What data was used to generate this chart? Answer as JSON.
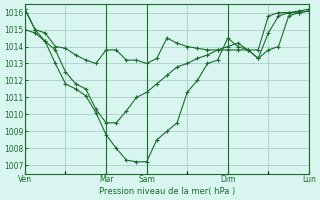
{
  "title": "",
  "xlabel": "Pression niveau de la mer( hPa )",
  "ylabel": "",
  "bg_color": "#d8f5f0",
  "line_color": "#1a6b2a",
  "grid_color": "#a0c8c0",
  "tick_color": "#1a6b2a",
  "ylim": [
    1006.5,
    1016.5
  ],
  "xtick_labels": [
    "Ven",
    "",
    "Mar",
    "Sam",
    "",
    "Dim",
    "",
    "Lun"
  ],
  "xtick_positions": [
    0,
    24,
    48,
    72,
    96,
    120,
    144,
    168
  ],
  "line1_x": [
    0,
    6,
    12,
    18,
    24,
    30,
    36,
    42,
    48,
    54,
    60,
    66,
    72,
    78,
    84,
    90,
    96,
    102,
    108,
    114,
    120,
    126,
    132,
    138,
    144,
    150,
    156,
    162,
    168
  ],
  "line1_y": [
    1016.2,
    1015.0,
    1014.8,
    1014.0,
    1013.9,
    1013.5,
    1013.2,
    1013.0,
    1013.8,
    1013.8,
    1013.2,
    1013.2,
    1013.0,
    1013.3,
    1014.5,
    1014.2,
    1014.0,
    1013.9,
    1013.8,
    1013.8,
    1013.8,
    1013.8,
    1013.8,
    1013.8,
    1015.8,
    1016.0,
    1016.0,
    1016.0,
    1016.1
  ],
  "line2_x": [
    0,
    6,
    12,
    18,
    24,
    30,
    36,
    42,
    48,
    54,
    60,
    66,
    72,
    78,
    84,
    90,
    96,
    102,
    108,
    114,
    120,
    126,
    132,
    138,
    144,
    150,
    156,
    162,
    168
  ],
  "line2_y": [
    1015.0,
    1014.8,
    1014.3,
    1013.8,
    1012.5,
    1011.8,
    1011.5,
    1010.3,
    1009.5,
    1009.5,
    1010.2,
    1011.0,
    1011.3,
    1011.8,
    1012.3,
    1012.8,
    1013.0,
    1013.3,
    1013.5,
    1013.8,
    1014.0,
    1014.2,
    1013.8,
    1013.3,
    1014.8,
    1015.8,
    1016.0,
    1016.1,
    1016.2
  ],
  "line3_x": [
    0,
    6,
    12,
    18,
    24,
    30,
    36,
    42,
    48,
    54,
    60,
    66,
    72,
    78,
    84,
    90,
    96,
    102,
    108,
    114,
    120,
    126,
    132,
    138,
    144,
    150,
    156,
    162,
    168
  ],
  "line3_y": [
    1016.2,
    1015.0,
    1014.3,
    1013.0,
    1011.8,
    1011.5,
    1011.1,
    1010.1,
    1008.8,
    1008.0,
    1007.3,
    1007.2,
    1007.2,
    1008.5,
    1009.0,
    1009.5,
    1011.3,
    1012.0,
    1013.0,
    1013.2,
    1014.5,
    1014.0,
    1013.8,
    1013.3,
    1013.8,
    1014.0,
    1015.8,
    1016.0,
    1016.1
  ],
  "ytick_vals": [
    1007,
    1008,
    1009,
    1010,
    1011,
    1012,
    1013,
    1014,
    1015,
    1016
  ],
  "vline_positions": [
    0,
    48,
    72,
    120,
    168
  ],
  "marker": "+"
}
